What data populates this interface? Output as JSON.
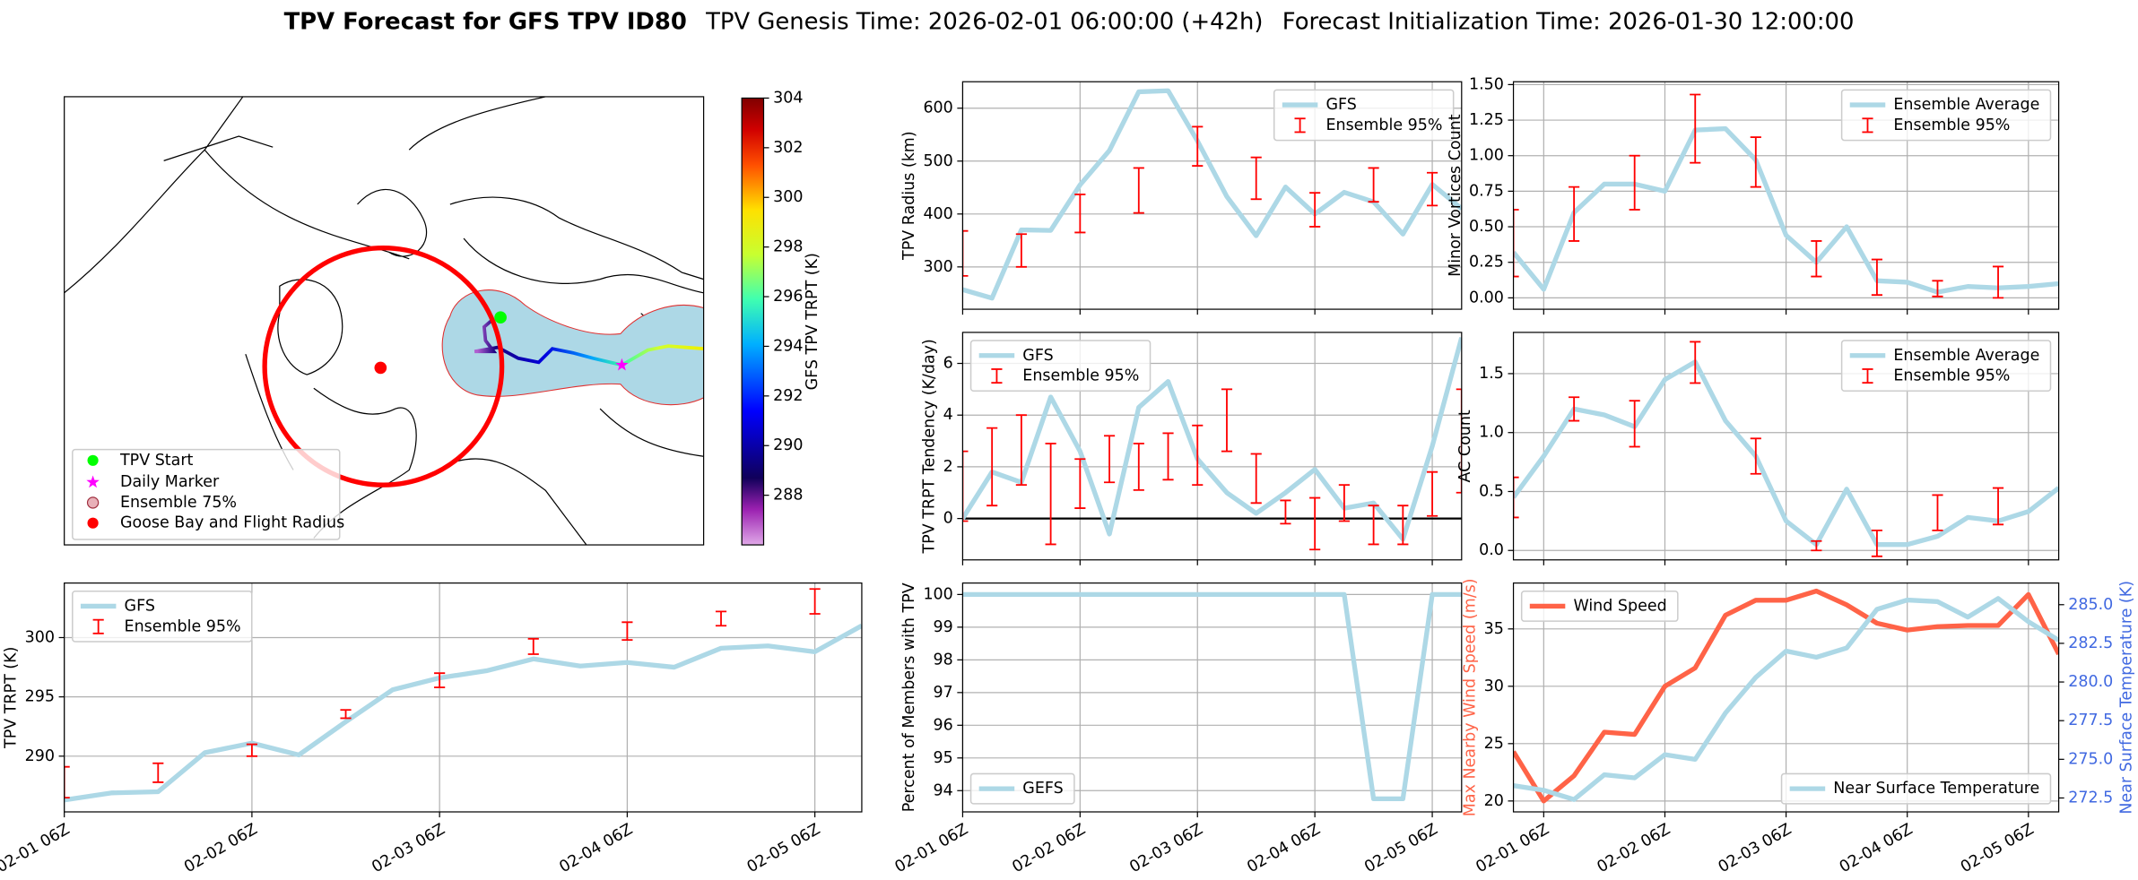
{
  "title": {
    "main": "TPV Forecast for GFS TPV ID80",
    "genesis": "TPV Genesis Time: 2026-02-01 06:00:00 (+42h)",
    "init": "Forecast Initialization Time: 2026-01-30 12:00:00"
  },
  "chart_data": [
    {
      "type": "map",
      "legend": [
        "TPV Start",
        "Daily Marker",
        "Ensemble 75%",
        "Goose Bay and Flight Radius"
      ],
      "colorbar": {
        "label": "GFS TPV TRPT (K)",
        "clim": [
          286,
          304
        ],
        "ticks": [
          288,
          290,
          292,
          294,
          296,
          298,
          300,
          302,
          304
        ]
      }
    },
    {
      "type": "line",
      "ylabel": "TPV Radius (km)",
      "grid": true,
      "legend": "upper right",
      "xticklabels": false,
      "x": [
        "02-01 06Z",
        "02-01 12Z",
        "02-01 18Z",
        "02-02 00Z",
        "02-02 06Z",
        "02-02 12Z",
        "02-02 18Z",
        "02-03 00Z",
        "02-03 06Z",
        "02-03 12Z",
        "02-03 18Z",
        "02-04 00Z",
        "02-04 06Z",
        "02-04 12Z",
        "02-04 18Z",
        "02-05 00Z",
        "02-05 06Z",
        "02-05 12Z"
      ],
      "xlim": [
        "02-01 06Z",
        "02-05 12Z"
      ],
      "xticks": [
        "02-01 06Z",
        "02-02 06Z",
        "02-03 06Z",
        "02-04 06Z",
        "02-05 06Z"
      ],
      "ylim": [
        220,
        650
      ],
      "yticks": [
        300,
        400,
        500,
        600
      ],
      "series": [
        {
          "name": "GFS",
          "color": "#add8e6",
          "values": [
            257,
            241,
            370,
            369,
            455,
            520,
            631,
            633,
            538,
            433,
            359,
            451,
            400,
            441,
            423,
            362,
            456,
            410
          ]
        },
        {
          "name": "Ensemble 95%",
          "type": "errorbar",
          "color": "#ff0000",
          "x": [
            "02-01 06Z",
            "02-01 18Z",
            "02-02 06Z",
            "02-02 18Z",
            "02-03 06Z",
            "02-03 18Z",
            "02-04 06Z",
            "02-04 18Z",
            "02-05 06Z"
          ],
          "low": [
            283,
            300,
            365,
            402,
            491,
            428,
            376,
            423,
            416
          ],
          "high": [
            368,
            362,
            437,
            487,
            565,
            507,
            440,
            487,
            478
          ]
        }
      ]
    },
    {
      "type": "line",
      "ylabel": "Minor Vortices Count",
      "grid": true,
      "legend": "upper right",
      "xticklabels": false,
      "x": [
        "02-01 00Z",
        "02-01 06Z",
        "02-01 12Z",
        "02-01 18Z",
        "02-02 00Z",
        "02-02 06Z",
        "02-02 12Z",
        "02-02 18Z",
        "02-03 00Z",
        "02-03 06Z",
        "02-03 12Z",
        "02-03 18Z",
        "02-04 00Z",
        "02-04 06Z",
        "02-04 12Z",
        "02-04 18Z",
        "02-05 00Z",
        "02-05 06Z",
        "02-05 12Z"
      ],
      "xlim": [
        "02-01 00Z",
        "02-05 12Z"
      ],
      "xticks": [
        "02-01 06Z",
        "02-02 06Z",
        "02-03 06Z",
        "02-04 06Z",
        "02-05 06Z"
      ],
      "ylim": [
        -0.08,
        1.52
      ],
      "yticks": [
        {
          "value": 0,
          "label": "0.00"
        },
        0.25,
        {
          "value": 0.5,
          "label": "0.50"
        },
        0.75,
        {
          "value": 1,
          "label": "1.00"
        },
        1.25,
        {
          "value": 1.5,
          "label": "1.50"
        }
      ],
      "series": [
        {
          "name": "Ensemble Average",
          "color": "#add8e6",
          "values": [
            0.32,
            0.06,
            0.6,
            0.8,
            0.8,
            0.75,
            1.18,
            1.19,
            0.97,
            0.44,
            0.25,
            0.5,
            0.12,
            0.11,
            0.04,
            0.08,
            0.07,
            0.08,
            0.1
          ]
        },
        {
          "name": "Ensemble 95%",
          "type": "errorbar",
          "color": "#ff0000",
          "x": [
            "02-01 00Z",
            "02-01 12Z",
            "02-02 00Z",
            "02-02 12Z",
            "02-03 00Z",
            "02-03 12Z",
            "02-04 00Z",
            "02-04 12Z",
            "02-05 00Z"
          ],
          "low": [
            0.15,
            0.4,
            0.62,
            0.95,
            0.78,
            0.15,
            0.02,
            0.01,
            0.0
          ],
          "high": [
            0.62,
            0.78,
            1.0,
            1.43,
            1.13,
            0.4,
            0.27,
            0.12,
            0.22
          ]
        }
      ]
    },
    {
      "type": "line",
      "ylabel": "TPV TRPT Tendency (K/day)",
      "grid": true,
      "legend": "upper left",
      "xticklabels": false,
      "hline": 0,
      "x": [
        "02-01 06Z",
        "02-01 12Z",
        "02-01 18Z",
        "02-02 00Z",
        "02-02 06Z",
        "02-02 12Z",
        "02-02 18Z",
        "02-03 00Z",
        "02-03 06Z",
        "02-03 12Z",
        "02-03 18Z",
        "02-04 00Z",
        "02-04 06Z",
        "02-04 12Z",
        "02-04 18Z",
        "02-05 00Z",
        "02-05 06Z",
        "02-05 12Z"
      ],
      "xlim": [
        "02-01 06Z",
        "02-05 12Z"
      ],
      "xticks": [
        "02-01 06Z",
        "02-02 06Z",
        "02-03 06Z",
        "02-04 06Z",
        "02-05 06Z"
      ],
      "ylim": [
        -1.6,
        7.2
      ],
      "yticks": [
        0,
        2,
        4,
        6
      ],
      "series": [
        {
          "name": "GFS",
          "color": "#add8e6",
          "values": [
            0,
            1.8,
            1.4,
            4.7,
            2.6,
            -0.6,
            4.3,
            5.3,
            2.3,
            1.0,
            0.2,
            1.0,
            1.9,
            0.4,
            0.6,
            -0.8,
            2.8,
            7.0
          ]
        },
        {
          "name": "Ensemble 95%",
          "type": "errorbar",
          "color": "#ff0000",
          "x": [
            "02-01 06Z",
            "02-01 12Z",
            "02-01 18Z",
            "02-02 00Z",
            "02-02 06Z",
            "02-02 12Z",
            "02-02 18Z",
            "02-03 00Z",
            "02-03 06Z",
            "02-03 12Z",
            "02-03 18Z",
            "02-04 00Z",
            "02-04 06Z",
            "02-04 12Z",
            "02-04 18Z",
            "02-05 00Z",
            "02-05 06Z",
            "02-05 12Z"
          ],
          "low": [
            -0.1,
            0.5,
            1.3,
            -1.0,
            0.4,
            1.4,
            1.1,
            1.5,
            1.3,
            2.6,
            0.6,
            -0.2,
            -1.2,
            -0.1,
            -1.0,
            -1.0,
            0.1,
            1.0
          ],
          "high": [
            2.6,
            3.5,
            4.0,
            2.9,
            2.3,
            3.2,
            2.9,
            3.3,
            3.6,
            5.0,
            2.5,
            0.7,
            0.8,
            1.3,
            0.5,
            0.5,
            1.8,
            5.0
          ]
        }
      ]
    },
    {
      "type": "line",
      "ylabel": "AC Count",
      "grid": true,
      "legend": "upper right",
      "xticklabels": false,
      "x": [
        "02-01 00Z",
        "02-01 06Z",
        "02-01 12Z",
        "02-01 18Z",
        "02-02 00Z",
        "02-02 06Z",
        "02-02 12Z",
        "02-02 18Z",
        "02-03 00Z",
        "02-03 06Z",
        "02-03 12Z",
        "02-03 18Z",
        "02-04 00Z",
        "02-04 06Z",
        "02-04 12Z",
        "02-04 18Z",
        "02-05 00Z",
        "02-05 06Z",
        "02-05 12Z"
      ],
      "xlim": [
        "02-01 00Z",
        "02-05 12Z"
      ],
      "xticks": [
        "02-01 06Z",
        "02-02 06Z",
        "02-03 06Z",
        "02-04 06Z",
        "02-05 06Z"
      ],
      "ylim": [
        -0.08,
        1.85
      ],
      "yticks": [
        {
          "value": 0,
          "label": "0.0"
        },
        0.5,
        {
          "value": 1,
          "label": "1.0"
        },
        1.5
      ],
      "series": [
        {
          "name": "Ensemble Average",
          "color": "#add8e6",
          "values": [
            0.45,
            0.8,
            1.2,
            1.15,
            1.05,
            1.45,
            1.6,
            1.1,
            0.8,
            0.25,
            0.05,
            0.52,
            0.05,
            0.05,
            0.12,
            0.28,
            0.25,
            0.33,
            0.53
          ]
        },
        {
          "name": "Ensemble 95%",
          "type": "errorbar",
          "color": "#ff0000",
          "x": [
            "02-01 00Z",
            "02-01 12Z",
            "02-02 00Z",
            "02-02 12Z",
            "02-03 00Z",
            "02-03 12Z",
            "02-04 00Z",
            "02-04 12Z",
            "02-05 00Z"
          ],
          "low": [
            0.28,
            1.1,
            0.88,
            1.42,
            0.65,
            0.0,
            -0.05,
            0.17,
            0.22
          ],
          "high": [
            0.62,
            1.3,
            1.27,
            1.77,
            0.95,
            0.08,
            0.17,
            0.47,
            0.53
          ]
        }
      ]
    },
    {
      "type": "line",
      "ylabel": "TPV TRPT (K)",
      "grid": true,
      "legend": "upper left",
      "xticklabels": true,
      "x": [
        "02-01 06Z",
        "02-01 12Z",
        "02-01 18Z",
        "02-02 00Z",
        "02-02 06Z",
        "02-02 12Z",
        "02-02 18Z",
        "02-03 00Z",
        "02-03 06Z",
        "02-03 12Z",
        "02-03 18Z",
        "02-04 00Z",
        "02-04 06Z",
        "02-04 12Z",
        "02-04 18Z",
        "02-05 00Z",
        "02-05 06Z",
        "02-05 12Z"
      ],
      "xlim": [
        "02-01 06Z",
        "02-05 12Z"
      ],
      "xticks": [
        "02-01 06Z",
        "02-02 06Z",
        "02-03 06Z",
        "02-04 06Z",
        "02-05 06Z"
      ],
      "ylim": [
        285.3,
        304.6
      ],
      "yticks": [
        290,
        295,
        300
      ],
      "series": [
        {
          "name": "GFS",
          "color": "#add8e6",
          "values": [
            286.3,
            286.9,
            287.0,
            290.3,
            291.1,
            290.1,
            292.9,
            295.6,
            296.6,
            297.2,
            298.2,
            297.6,
            297.9,
            297.5,
            299.1,
            299.3,
            298.8,
            301.0
          ]
        },
        {
          "name": "Ensemble 95%",
          "type": "errorbar",
          "color": "#ff0000",
          "x": [
            "02-01 06Z",
            "02-01 18Z",
            "02-02 06Z",
            "02-02 18Z",
            "02-03 06Z",
            "02-03 18Z",
            "02-04 06Z",
            "02-04 18Z",
            "02-05 06Z"
          ],
          "low": [
            286.5,
            287.8,
            290.0,
            293.2,
            295.8,
            298.6,
            299.8,
            301.0,
            302.0
          ],
          "high": [
            289.1,
            289.4,
            291.0,
            293.9,
            297.0,
            299.9,
            301.3,
            302.2,
            304.1
          ]
        }
      ]
    },
    {
      "type": "line",
      "ylabel": "Percent of Members with TPV",
      "grid": true,
      "legend": "lower left",
      "xticklabels": true,
      "x": [
        "02-01 06Z",
        "02-01 12Z",
        "02-01 18Z",
        "02-02 00Z",
        "02-02 06Z",
        "02-02 12Z",
        "02-02 18Z",
        "02-03 00Z",
        "02-03 06Z",
        "02-03 12Z",
        "02-03 18Z",
        "02-04 00Z",
        "02-04 06Z",
        "02-04 12Z",
        "02-04 18Z",
        "02-05 00Z",
        "02-05 06Z",
        "02-05 12Z"
      ],
      "xlim": [
        "02-01 06Z",
        "02-05 12Z"
      ],
      "xticks": [
        "02-01 06Z",
        "02-02 06Z",
        "02-03 06Z",
        "02-04 06Z",
        "02-05 06Z"
      ],
      "ylim": [
        93.35,
        100.35
      ],
      "yticks": [
        94,
        95,
        96,
        97,
        98,
        99,
        100
      ],
      "series": [
        {
          "name": "GEFS",
          "color": "#add8e6",
          "values": [
            100,
            100,
            100,
            100,
            100,
            100,
            100,
            100,
            100,
            100,
            100,
            100,
            100,
            100,
            93.75,
            93.75,
            100,
            100
          ]
        }
      ]
    },
    {
      "type": "line",
      "ylabel": "Max Nearby Wind Speed (m/s)",
      "ycolor": "#ff6347",
      "y2label": "Near Surface Temperature (K)",
      "y2color": "#4169e1",
      "grid": true,
      "legend": "upper left",
      "xticklabels": true,
      "x": [
        "02-01 00Z",
        "02-01 06Z",
        "02-01 12Z",
        "02-01 18Z",
        "02-02 00Z",
        "02-02 06Z",
        "02-02 12Z",
        "02-02 18Z",
        "02-03 00Z",
        "02-03 06Z",
        "02-03 12Z",
        "02-03 18Z",
        "02-04 00Z",
        "02-04 06Z",
        "02-04 12Z",
        "02-04 18Z",
        "02-05 00Z",
        "02-05 06Z",
        "02-05 12Z"
      ],
      "xlim": [
        "02-01 00Z",
        "02-05 12Z"
      ],
      "xticks": [
        "02-01 06Z",
        "02-02 06Z",
        "02-03 06Z",
        "02-04 06Z",
        "02-05 06Z"
      ],
      "ylim": [
        19.05,
        39.0
      ],
      "yticks": [
        20,
        25,
        30,
        35
      ],
      "y2lim": [
        271.6,
        286.4
      ],
      "y2ticks": [
        272.5,
        {
          "value": 275,
          "label": "275.0"
        },
        277.5,
        {
          "value": 280,
          "label": "280.0"
        },
        282.5,
        {
          "value": 285,
          "label": "285.0"
        }
      ],
      "series": [
        {
          "name": "Wind Speed",
          "color": "#ff6347",
          "values": [
            24.3,
            20.0,
            22.2,
            26.0,
            25.8,
            30.0,
            31.6,
            36.2,
            37.5,
            37.5,
            38.3,
            37.1,
            35.5,
            34.9,
            35.2,
            35.3,
            35.3,
            38.0,
            32.8
          ]
        },
        {
          "name": "Near Surface Temperature",
          "color": "#add8e6",
          "axis": "y2",
          "legend": "lower right",
          "values": [
            273.3,
            273.0,
            272.4,
            274.0,
            273.8,
            275.3,
            275.0,
            278.0,
            280.3,
            282.0,
            281.6,
            282.2,
            284.7,
            285.3,
            285.2,
            284.2,
            285.4,
            283.9,
            282.7
          ]
        }
      ]
    }
  ]
}
